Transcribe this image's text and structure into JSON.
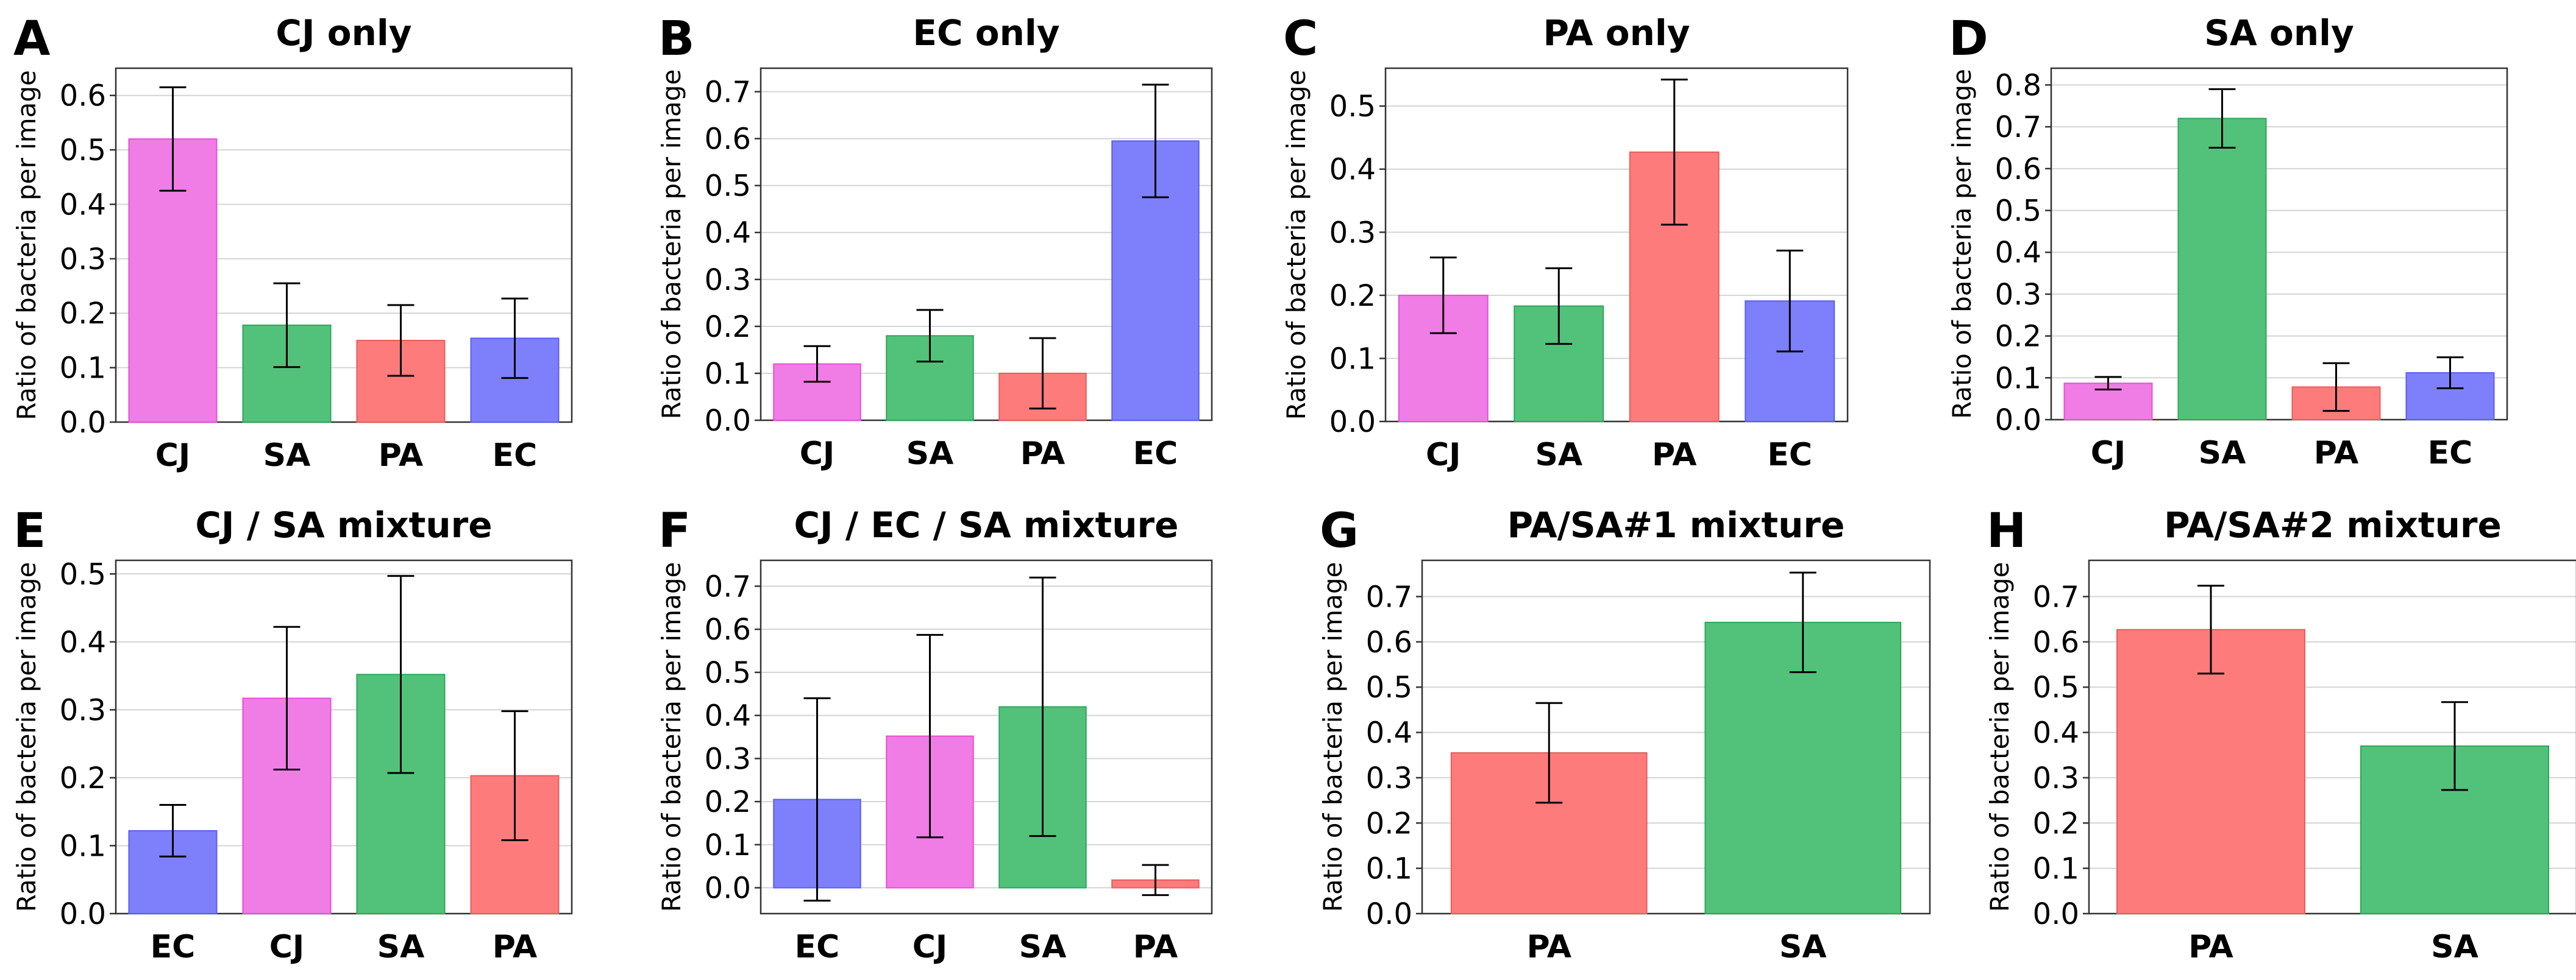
{
  "colors": {
    "CJ": "#f07de6",
    "SA": "#52c27a",
    "PA": "#fd7b7b",
    "EC": "#7d80fa",
    "CJ_edge": "#e54fd6",
    "SA_edge": "#2ea65a",
    "PA_edge": "#e85c5c",
    "EC_edge": "#5b5ef0",
    "grid": "#d4d4d4",
    "error_bar": "#000000"
  },
  "chart_data": [
    {
      "type": "bar",
      "panel": "A",
      "title": "CJ only",
      "xlabel": "",
      "ylabel": "Ratio of bacteria per image",
      "categories": [
        "CJ",
        "SA",
        "PA",
        "EC"
      ],
      "values": [
        0.52,
        0.178,
        0.15,
        0.154
      ],
      "errors": [
        0.095,
        0.077,
        0.065,
        0.073
      ],
      "yticks": [
        0.0,
        0.1,
        0.2,
        0.3,
        0.4,
        0.5,
        0.6
      ],
      "tick_labels": [
        "0.0",
        "0.1",
        "0.2",
        "0.3",
        "0.4",
        "0.5",
        "0.6"
      ],
      "ylim": [
        0,
        0.65
      ],
      "grid": true
    },
    {
      "type": "bar",
      "panel": "B",
      "title": "EC only",
      "xlabel": "",
      "ylabel": "Ratio of bacteria per image",
      "categories": [
        "CJ",
        "SA",
        "PA",
        "EC"
      ],
      "values": [
        0.12,
        0.18,
        0.1,
        0.595
      ],
      "errors": [
        0.038,
        0.055,
        0.075,
        0.12
      ],
      "yticks": [
        0.0,
        0.1,
        0.2,
        0.3,
        0.4,
        0.5,
        0.6,
        0.7
      ],
      "tick_labels": [
        "0.0",
        "0.1",
        "0.2",
        "0.3",
        "0.4",
        "0.5",
        "0.6",
        "0.7"
      ],
      "ylim": [
        0,
        0.75
      ],
      "grid": true
    },
    {
      "type": "bar",
      "panel": "C",
      "title": "PA only",
      "xlabel": "",
      "ylabel": "Ratio of bacteria per image",
      "categories": [
        "CJ",
        "SA",
        "PA",
        "EC"
      ],
      "values": [
        0.2,
        0.183,
        0.427,
        0.191
      ],
      "errors": [
        0.06,
        0.06,
        0.115,
        0.08
      ],
      "yticks": [
        0.0,
        0.1,
        0.2,
        0.3,
        0.4,
        0.5
      ],
      "tick_labels": [
        "0.0",
        "0.1",
        "0.2",
        "0.3",
        "0.4",
        "0.5"
      ],
      "ylim": [
        0,
        0.56
      ],
      "grid": true
    },
    {
      "type": "bar",
      "panel": "D",
      "title": "SA only",
      "xlabel": "",
      "ylabel": "Ratio of bacteria per image",
      "categories": [
        "CJ",
        "SA",
        "PA",
        "EC"
      ],
      "values": [
        0.087,
        0.72,
        0.078,
        0.112
      ],
      "errors": [
        0.015,
        0.07,
        0.057,
        0.037
      ],
      "yticks": [
        0.0,
        0.1,
        0.2,
        0.3,
        0.4,
        0.5,
        0.6,
        0.7,
        0.8
      ],
      "tick_labels": [
        "0.0",
        "0.1",
        "0.2",
        "0.3",
        "0.4",
        "0.5",
        "0.6",
        "0.7",
        "0.8"
      ],
      "ylim": [
        0,
        0.84
      ],
      "grid": true
    },
    {
      "type": "bar",
      "panel": "E",
      "title": "CJ / SA mixture",
      "xlabel": "",
      "ylabel": "Ratio of bacteria per image",
      "categories": [
        "EC",
        "CJ",
        "SA",
        "PA"
      ],
      "values": [
        0.122,
        0.317,
        0.352,
        0.203
      ],
      "errors": [
        0.038,
        0.105,
        0.145,
        0.095
      ],
      "yticks": [
        0.0,
        0.1,
        0.2,
        0.3,
        0.4,
        0.5
      ],
      "tick_labels": [
        "0.0",
        "0.1",
        "0.2",
        "0.3",
        "0.4",
        "0.5"
      ],
      "ylim": [
        0,
        0.52
      ],
      "grid": true
    },
    {
      "type": "bar",
      "panel": "F",
      "title": "CJ / EC / SA mixture",
      "xlabel": "",
      "ylabel": "Ratio of bacteria per image",
      "categories": [
        "EC",
        "CJ",
        "SA",
        "PA"
      ],
      "values": [
        0.205,
        0.352,
        0.42,
        0.018
      ],
      "errors": [
        0.235,
        0.235,
        0.3,
        0.035
      ],
      "yticks": [
        0.0,
        0.1,
        0.2,
        0.3,
        0.4,
        0.5,
        0.6,
        0.7
      ],
      "tick_labels": [
        "0.0",
        "0.1",
        "0.2",
        "0.3",
        "0.4",
        "0.5",
        "0.6",
        "0.7"
      ],
      "ylim": [
        -0.06,
        0.76
      ],
      "grid": true
    },
    {
      "type": "bar",
      "panel": "G",
      "title": "PA/SA#1 mixture",
      "xlabel": "",
      "ylabel": "Ratio of bacteria per image",
      "categories": [
        "PA",
        "SA"
      ],
      "values": [
        0.355,
        0.643
      ],
      "errors": [
        0.11,
        0.11
      ],
      "yticks": [
        0.0,
        0.1,
        0.2,
        0.3,
        0.4,
        0.5,
        0.6,
        0.7
      ],
      "tick_labels": [
        "0.0",
        "0.1",
        "0.2",
        "0.3",
        "0.4",
        "0.5",
        "0.6",
        "0.7"
      ],
      "ylim": [
        0,
        0.78
      ],
      "grid": true
    },
    {
      "type": "bar",
      "panel": "H",
      "title": "PA/SA#2 mixture",
      "xlabel": "",
      "ylabel": "Ratio of bacteria per image",
      "categories": [
        "PA",
        "SA"
      ],
      "values": [
        0.627,
        0.37
      ],
      "errors": [
        0.097,
        0.097
      ],
      "yticks": [
        0.0,
        0.1,
        0.2,
        0.3,
        0.4,
        0.5,
        0.6,
        0.7
      ],
      "tick_labels": [
        "0.0",
        "0.1",
        "0.2",
        "0.3",
        "0.4",
        "0.5",
        "0.6",
        "0.7"
      ],
      "ylim": [
        0,
        0.78
      ],
      "grid": true
    }
  ]
}
